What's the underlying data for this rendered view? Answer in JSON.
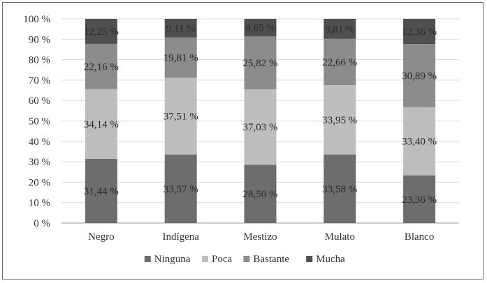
{
  "chart_data": {
    "type": "bar",
    "stacked": true,
    "categories": [
      "Negro",
      "Indígena",
      "Mestizo",
      "Mulato",
      "Blanco"
    ],
    "series": [
      {
        "name": "Ninguna",
        "color": "#6d6d6d",
        "values": [
          31.44,
          33.57,
          28.5,
          33.58,
          23.36
        ],
        "labels": [
          "31,44 %",
          "33,57 %",
          "28,50 %",
          "33,58 %",
          "23,36 %"
        ]
      },
      {
        "name": "Poca",
        "color": "#bdbdbd",
        "values": [
          34.14,
          37.51,
          37.03,
          33.95,
          33.4
        ],
        "labels": [
          "34,14 %",
          "37,51 %",
          "37,03 %",
          "33,95 %",
          "33,40 %"
        ]
      },
      {
        "name": "Bastante",
        "color": "#8c8c8c",
        "values": [
          22.16,
          19.81,
          25.82,
          22.66,
          30.89
        ],
        "labels": [
          "22,16 %",
          "19,81 %",
          "25,82 %",
          "22,66 %",
          "30,89 %"
        ]
      },
      {
        "name": "Mucha",
        "color": "#4f4f4f",
        "values": [
          12.25,
          9.11,
          8.65,
          9.81,
          12.36
        ],
        "labels": [
          "12,25 %",
          "9,11 %",
          "8,65 %",
          "9,81 %",
          "12,36 %"
        ]
      }
    ],
    "ylim": [
      0,
      100
    ],
    "yticks": [
      0,
      10,
      20,
      30,
      40,
      50,
      60,
      70,
      80,
      90,
      100
    ],
    "ytick_labels": [
      "0 %",
      "10 %",
      "20 %",
      "30 %",
      "40 %",
      "50 %",
      "60 %",
      "70 %",
      "80 %",
      "90 %",
      "100 %"
    ],
    "grid": true,
    "legend_position": "bottom",
    "title": "",
    "xlabel": "",
    "ylabel": ""
  }
}
